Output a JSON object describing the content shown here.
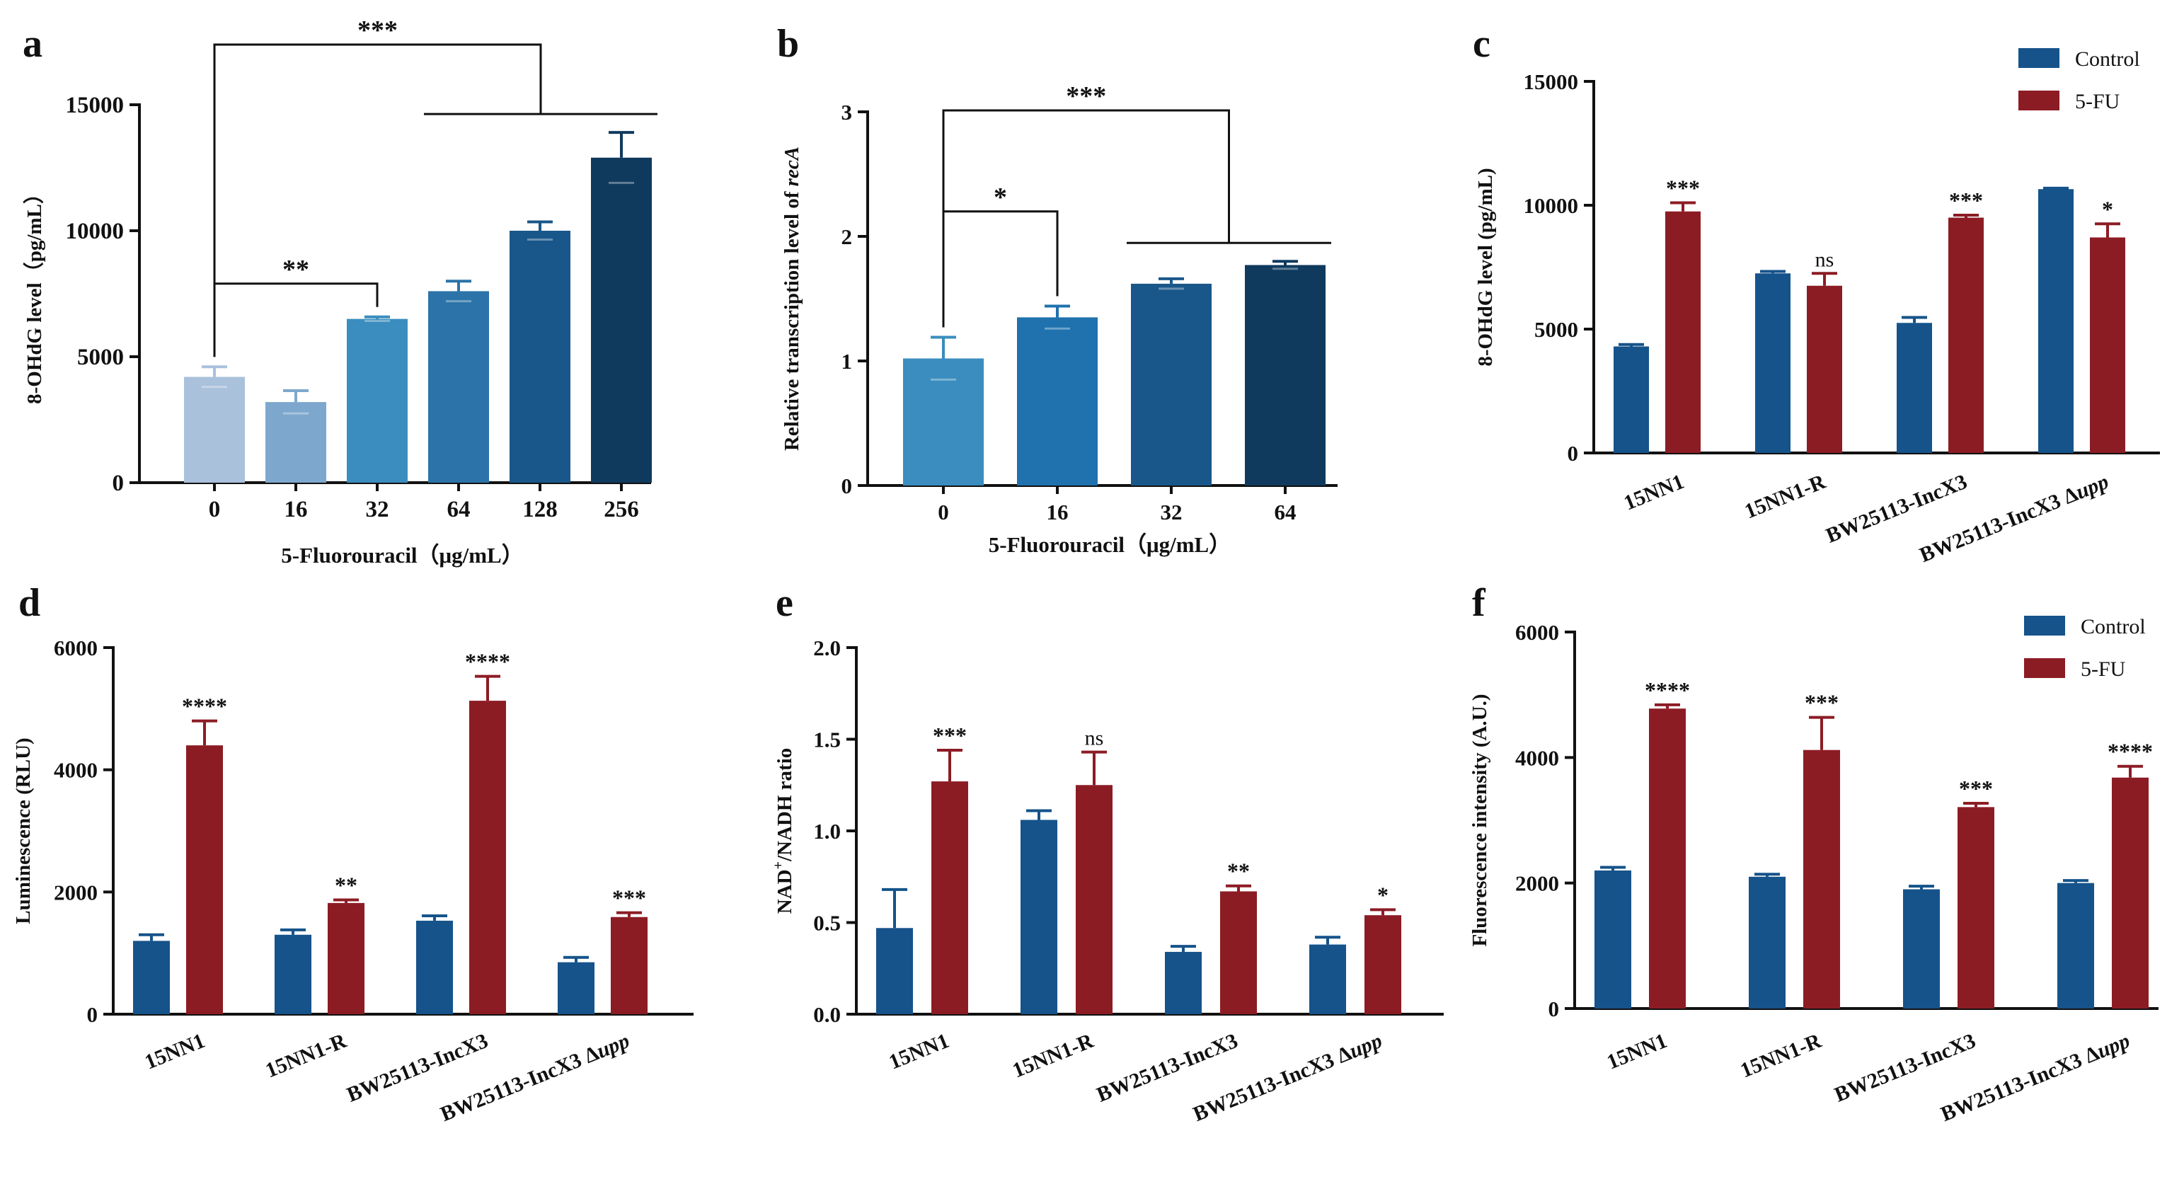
{
  "colors": {
    "control": "#15538a",
    "fu": "#8c1c24",
    "axis": "#111111",
    "panel_a": [
      "#aac1dc",
      "#7ea7cd",
      "#3a8dbe",
      "#2b73a8",
      "#19578a",
      "#0f3a5e"
    ],
    "panel_b": [
      "#3a8dbe",
      "#1f72ad",
      "#19578a",
      "#0f3a5e"
    ]
  },
  "legend": {
    "control": "Control",
    "fu": "5-FU"
  },
  "chart_data": [
    {
      "id": "a",
      "panel_label": "a",
      "type": "bar",
      "title": "",
      "xlabel": "5-Fluorouracil（μg/mL）",
      "ylabel": "8-OHdG level（pg/mL）",
      "categories": [
        "0",
        "16",
        "32",
        "64",
        "128",
        "256"
      ],
      "values": [
        4200,
        3200,
        6500,
        7600,
        10000,
        12900
      ],
      "errors": [
        400,
        450,
        80,
        400,
        350,
        1000
      ],
      "ylim": [
        0,
        15000
      ],
      "yticks": [
        0,
        5000,
        10000,
        15000
      ],
      "ytick_labels": [
        "0",
        "5000",
        "10000",
        "15000"
      ],
      "significance": [
        {
          "from": 0,
          "to": 2,
          "label": "**"
        },
        {
          "from": 0,
          "to": [
            3,
            5
          ],
          "label": "***"
        }
      ]
    },
    {
      "id": "b",
      "panel_label": "b",
      "type": "bar",
      "title": "",
      "xlabel": "5-Fluorouracil（μg/mL）",
      "ylabel_prefix": "Relative transcription level of ",
      "ylabel_gene": "recA",
      "categories": [
        "0",
        "16",
        "32",
        "64"
      ],
      "values": [
        1.02,
        1.35,
        1.62,
        1.77
      ],
      "errors": [
        0.17,
        0.09,
        0.04,
        0.03
      ],
      "ylim": [
        0,
        3
      ],
      "yticks": [
        0,
        1,
        2,
        3
      ],
      "ytick_labels": [
        "0",
        "1",
        "2",
        "3"
      ],
      "significance": [
        {
          "from": 0,
          "to": 1,
          "label": "*"
        },
        {
          "from": 0,
          "to": [
            2,
            3
          ],
          "label": "***"
        }
      ]
    },
    {
      "id": "c",
      "panel_label": "c",
      "type": "bar",
      "title": "",
      "xlabel": "",
      "ylabel": "8-OHdG level (pg/mL)",
      "categories": [
        "15NN1",
        "15NN1-R",
        "BW25113-IncX3",
        "BW25113-IncX3 Δupp"
      ],
      "series": [
        {
          "name": "Control",
          "values": [
            4300,
            7250,
            5250,
            10650
          ],
          "errors": [
            80,
            80,
            220,
            40
          ]
        },
        {
          "name": "5-FU",
          "values": [
            9750,
            6750,
            9500,
            8700
          ],
          "errors": [
            350,
            500,
            100,
            550
          ],
          "stars": [
            "***",
            "ns",
            "***",
            "*"
          ]
        }
      ],
      "ylim": [
        0,
        15000
      ],
      "yticks": [
        0,
        5000,
        10000,
        15000
      ],
      "ytick_labels": [
        "0",
        "5000",
        "10000",
        "15000"
      ],
      "legend": "top-right"
    },
    {
      "id": "d",
      "panel_label": "d",
      "type": "bar",
      "title": "",
      "xlabel": "",
      "ylabel": "Luminescence (RLU)",
      "categories": [
        "15NN1",
        "15NN1-R",
        "BW25113-IncX3",
        "BW25113-IncX3 Δupp"
      ],
      "series": [
        {
          "name": "Control",
          "values": [
            1200,
            1300,
            1530,
            850
          ],
          "errors": [
            100,
            80,
            80,
            80
          ]
        },
        {
          "name": "5-FU",
          "values": [
            4400,
            1820,
            5130,
            1590
          ],
          "errors": [
            400,
            50,
            400,
            70
          ],
          "stars": [
            "****",
            "**",
            "****",
            "***"
          ]
        }
      ],
      "ylim": [
        0,
        6000
      ],
      "yticks": [
        0,
        2000,
        4000,
        6000
      ],
      "ytick_labels": [
        "0",
        "2000",
        "4000",
        "6000"
      ]
    },
    {
      "id": "e",
      "panel_label": "e",
      "type": "bar",
      "title": "",
      "xlabel": "",
      "ylabel_pre": "NAD",
      "ylabel_sup": "+",
      "ylabel_post": "/NADH ratio",
      "categories": [
        "15NN1",
        "15NN1-R",
        "BW25113-IncX3",
        "BW25113-IncX3 Δupp"
      ],
      "series": [
        {
          "name": "Control",
          "values": [
            0.47,
            1.06,
            0.34,
            0.38
          ],
          "errors": [
            0.21,
            0.05,
            0.03,
            0.04
          ]
        },
        {
          "name": "5-FU",
          "values": [
            1.27,
            1.25,
            0.67,
            0.54
          ],
          "errors": [
            0.17,
            0.18,
            0.03,
            0.03
          ],
          "stars": [
            "***",
            "ns",
            "**",
            "*"
          ]
        }
      ],
      "ylim": [
        0,
        2.0
      ],
      "yticks": [
        0,
        0.5,
        1.0,
        1.5,
        2.0
      ],
      "ytick_labels": [
        "0.0",
        "0.5",
        "1.0",
        "1.5",
        "2.0"
      ]
    },
    {
      "id": "f",
      "panel_label": "f",
      "type": "bar",
      "title": "",
      "xlabel": "",
      "ylabel": "Fluorescence intensity (A.U.)",
      "categories": [
        "15NN1",
        "15NN1-R",
        "BW25113-IncX3",
        "BW25113-IncX3 Δupp"
      ],
      "series": [
        {
          "name": "Control",
          "values": [
            2200,
            2100,
            1900,
            2000
          ],
          "errors": [
            50,
            40,
            50,
            40
          ]
        },
        {
          "name": "5-FU",
          "values": [
            4780,
            4120,
            3210,
            3680
          ],
          "errors": [
            60,
            520,
            60,
            180
          ],
          "stars": [
            "****",
            "***",
            "***",
            "****"
          ]
        }
      ],
      "ylim": [
        0,
        6000
      ],
      "yticks": [
        0,
        2000,
        4000,
        6000
      ],
      "ytick_labels": [
        "0",
        "2000",
        "4000",
        "6000"
      ],
      "legend": "top-right"
    }
  ]
}
